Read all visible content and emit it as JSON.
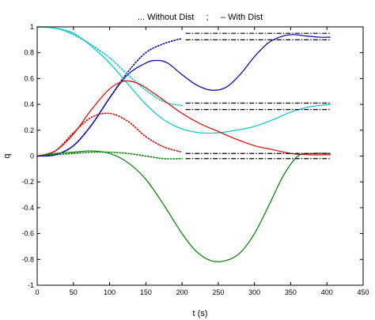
{
  "chart_data": {
    "type": "line",
    "title": "... Without Dist     ;     – With Dist",
    "xlabel": "t (s)",
    "ylabel": "q",
    "xlim": [
      0,
      450
    ],
    "ylim": [
      -1,
      1
    ],
    "xticks": [
      0,
      50,
      100,
      150,
      200,
      250,
      300,
      350,
      400,
      450
    ],
    "yticks": [
      -1,
      -0.8,
      -0.6,
      -0.4,
      -0.2,
      0,
      0.2,
      0.4,
      0.6,
      0.8,
      1
    ],
    "grid": false,
    "series": [
      {
        "color": "#0000b0",
        "style": "dotted",
        "x": [
          0,
          25,
          50,
          75,
          100,
          125,
          150,
          175,
          200
        ],
        "y": [
          0,
          0.01,
          0.08,
          0.24,
          0.45,
          0.65,
          0.8,
          0.87,
          0.91
        ]
      },
      {
        "color": "#00c8c8",
        "style": "dotted",
        "x": [
          0,
          25,
          50,
          75,
          100,
          125,
          150,
          175,
          200
        ],
        "y": [
          1,
          0.99,
          0.94,
          0.86,
          0.76,
          0.63,
          0.51,
          0.42,
          0.39
        ]
      },
      {
        "color": "#e00000",
        "style": "dotted",
        "x": [
          0,
          25,
          50,
          75,
          100,
          125,
          150,
          175,
          200
        ],
        "y": [
          0,
          0.04,
          0.18,
          0.3,
          0.33,
          0.27,
          0.15,
          0.07,
          0.03
        ]
      },
      {
        "color": "#008000",
        "style": "dotted",
        "x": [
          0,
          25,
          50,
          75,
          100,
          125,
          150,
          175,
          200
        ],
        "y": [
          0,
          0.01,
          0.02,
          0.03,
          0.03,
          0.02,
          0.0,
          -0.02,
          -0.02
        ]
      },
      {
        "color": "#0000b0",
        "style": "solid",
        "x": [
          0,
          25,
          50,
          75,
          100,
          125,
          150,
          165,
          180,
          200,
          220,
          240,
          260,
          280,
          300,
          320,
          340,
          355,
          370,
          390,
          405
        ],
        "y": [
          0,
          0.01,
          0.08,
          0.24,
          0.45,
          0.63,
          0.72,
          0.74,
          0.72,
          0.63,
          0.55,
          0.51,
          0.53,
          0.63,
          0.77,
          0.88,
          0.93,
          0.94,
          0.93,
          0.92,
          0.92
        ]
      },
      {
        "color": "#00c8c8",
        "style": "solid",
        "x": [
          0,
          25,
          50,
          75,
          100,
          125,
          150,
          175,
          200,
          225,
          250,
          275,
          300,
          325,
          350,
          375,
          405
        ],
        "y": [
          1,
          0.99,
          0.95,
          0.85,
          0.72,
          0.56,
          0.4,
          0.28,
          0.21,
          0.18,
          0.18,
          0.2,
          0.23,
          0.28,
          0.34,
          0.38,
          0.4
        ]
      },
      {
        "color": "#e00000",
        "style": "solid",
        "x": [
          0,
          25,
          50,
          75,
          100,
          120,
          140,
          160,
          180,
          200,
          225,
          250,
          275,
          300,
          325,
          350,
          375,
          405
        ],
        "y": [
          0,
          0.04,
          0.17,
          0.36,
          0.52,
          0.58,
          0.56,
          0.49,
          0.41,
          0.33,
          0.25,
          0.19,
          0.13,
          0.08,
          0.05,
          0.02,
          0.01,
          0.01
        ]
      },
      {
        "color": "#008000",
        "style": "solid",
        "x": [
          0,
          25,
          50,
          75,
          100,
          125,
          150,
          175,
          200,
          220,
          240,
          260,
          280,
          300,
          320,
          340,
          360,
          380,
          405
        ],
        "y": [
          0,
          0.02,
          0.03,
          0.04,
          0.02,
          -0.05,
          -0.18,
          -0.38,
          -0.6,
          -0.74,
          -0.81,
          -0.81,
          -0.75,
          -0.6,
          -0.38,
          -0.15,
          0.0,
          0.02,
          0.02
        ]
      },
      {
        "color": "#000000",
        "style": "dashdot",
        "x": [
          205,
          405
        ],
        "y": [
          0.95,
          0.95
        ]
      },
      {
        "color": "#000000",
        "style": "dashdot",
        "x": [
          205,
          405
        ],
        "y": [
          0.9,
          0.9
        ]
      },
      {
        "color": "#000000",
        "style": "dashdot",
        "x": [
          205,
          405
        ],
        "y": [
          0.41,
          0.41
        ]
      },
      {
        "color": "#000000",
        "style": "dashdot",
        "x": [
          205,
          405
        ],
        "y": [
          0.36,
          0.36
        ]
      },
      {
        "color": "#000000",
        "style": "dashdot",
        "x": [
          205,
          405
        ],
        "y": [
          0.02,
          0.02
        ]
      },
      {
        "color": "#000000",
        "style": "dashdot",
        "x": [
          205,
          405
        ],
        "y": [
          -0.02,
          -0.02
        ]
      }
    ]
  }
}
